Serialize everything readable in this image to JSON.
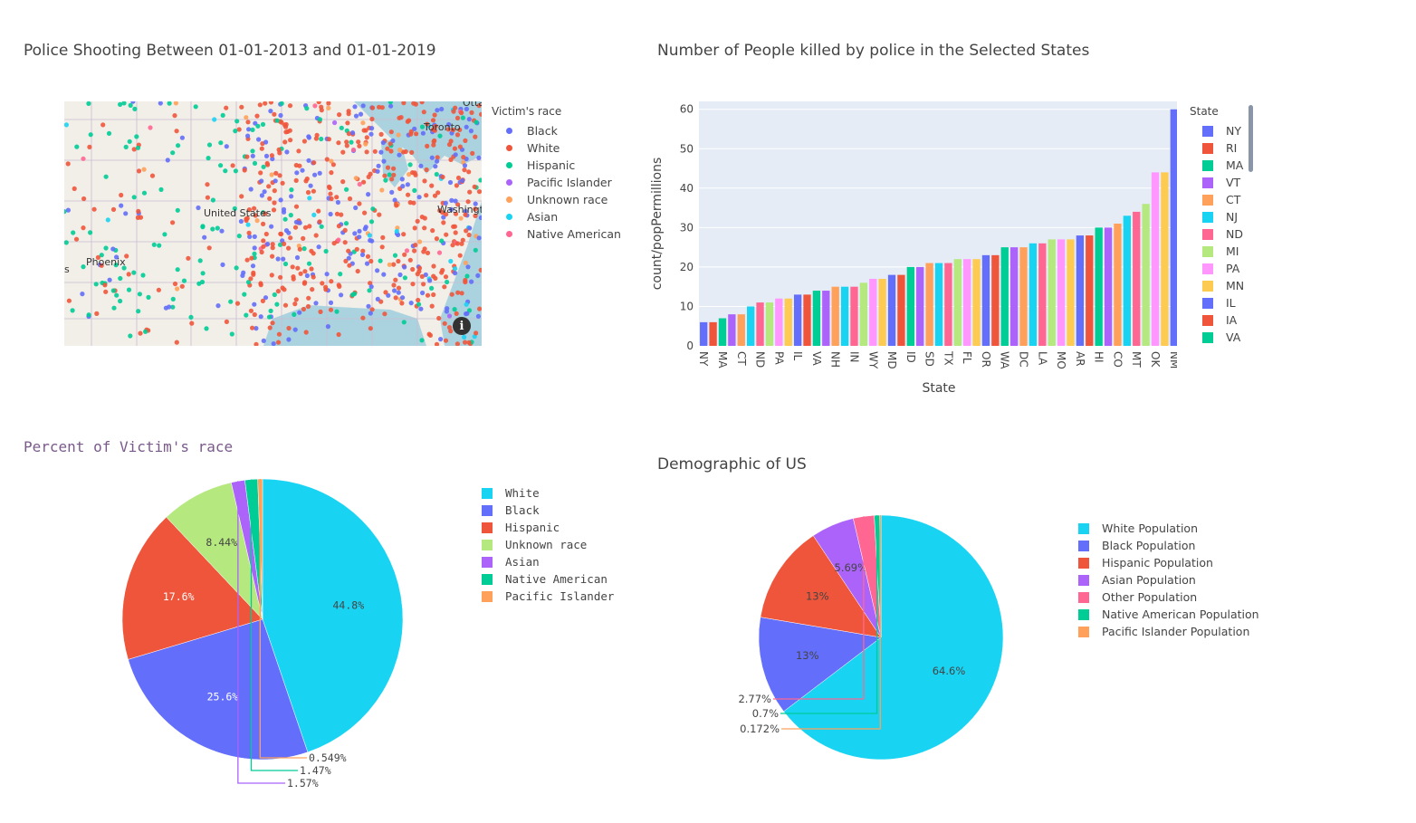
{
  "titles": {
    "map": "Police Shooting Between 01-01-2013 and 01-01-2019",
    "bar": "Number of People killed by police in the Selected States",
    "pie1": "Percent of Victim's race",
    "pie2": "Demographic of US"
  },
  "map": {
    "legend_title": "Victim's race",
    "legend": [
      {
        "label": "Black",
        "color": "#636efa"
      },
      {
        "label": "White",
        "color": "#ef553b"
      },
      {
        "label": "Hispanic",
        "color": "#00cc96"
      },
      {
        "label": "Pacific Islander",
        "color": "#ab63fa"
      },
      {
        "label": "Unknown race",
        "color": "#ffa15a"
      },
      {
        "label": "Asian",
        "color": "#19d3f3"
      },
      {
        "label": "Native American",
        "color": "#ff6692"
      }
    ],
    "place_labels": [
      "Toronto",
      "United States",
      "Washington",
      "Phoenix",
      "Otta",
      "s"
    ],
    "info_icon": "info-icon"
  },
  "chart_data": [
    {
      "type": "bar",
      "title": "Number of People killed by police in the Selected States",
      "xlabel": "State",
      "ylabel": "count/popPermillions",
      "ylim": [
        0,
        62
      ],
      "yticks": [
        0,
        10,
        20,
        30,
        40,
        50,
        60
      ],
      "xticks_shown": [
        "NY",
        "MA",
        "CT",
        "ND",
        "PA",
        "IL",
        "VA",
        "NH",
        "IN",
        "WY",
        "MD",
        "ID",
        "SD",
        "TX",
        "FL",
        "OR",
        "WA",
        "DC",
        "LA",
        "MO",
        "AR",
        "HI",
        "CO",
        "MT",
        "OK",
        "NM"
      ],
      "palette": [
        "#636efa",
        "#ef553b",
        "#00cc96",
        "#ab63fa",
        "#ffa15a",
        "#19d3f3",
        "#ff6692",
        "#b6e880",
        "#ff97ff",
        "#fecb52"
      ],
      "values": [
        6,
        6,
        7,
        8,
        8,
        10,
        11,
        11,
        12,
        12,
        13,
        13,
        14,
        14,
        15,
        15,
        15,
        16,
        17,
        17,
        18,
        18,
        20,
        20,
        21,
        21,
        21,
        22,
        22,
        22,
        23,
        23,
        25,
        25,
        25,
        26,
        26,
        27,
        27,
        27,
        28,
        28,
        30,
        30,
        31,
        33,
        34,
        36,
        44,
        44,
        60
      ],
      "legend_title": "State",
      "legend": [
        "NY",
        "RI",
        "MA",
        "VT",
        "CT",
        "NJ",
        "ND",
        "MI",
        "PA",
        "MN",
        "IL",
        "IA",
        "VA"
      ]
    },
    {
      "type": "pie",
      "title": "Percent of Victim's race",
      "labels": [
        "White",
        "Black",
        "Hispanic",
        "Unknown race",
        "Asian",
        "Native American",
        "Pacific Islander"
      ],
      "values": [
        44.8,
        25.6,
        17.6,
        8.44,
        1.57,
        1.47,
        0.549
      ],
      "text": [
        "44.8%",
        "25.6%",
        "17.6%",
        "8.44%",
        "1.57%",
        "1.47%",
        "0.549%"
      ],
      "colors": [
        "#19d3f3",
        "#636efa",
        "#ef553b",
        "#b6e880",
        "#ab63fa",
        "#00cc96",
        "#ffa15a"
      ]
    },
    {
      "type": "pie",
      "title": "Demographic of US",
      "labels": [
        "White Population",
        "Black Population",
        "Hispanic Population",
        "Asian Population",
        "Other Population",
        "Native American Population",
        "Pacific Islander Population"
      ],
      "values": [
        64.6,
        13,
        13,
        5.69,
        2.77,
        0.7,
        0.172
      ],
      "text": [
        "64.6%",
        "13%",
        "13%",
        "5.69%",
        "2.77%",
        "0.7%",
        "0.172%"
      ],
      "colors": [
        "#19d3f3",
        "#636efa",
        "#ef553b",
        "#ab63fa",
        "#ff6692",
        "#00cc96",
        "#ffa15a"
      ]
    }
  ]
}
